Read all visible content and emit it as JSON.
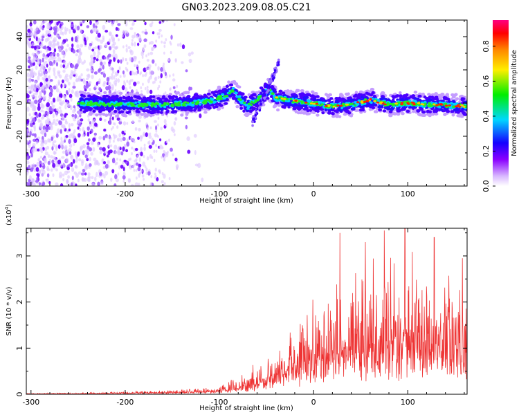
{
  "title": "GN03.2023.209.08.05.C21",
  "chart_data": [
    {
      "type": "heatmap",
      "xlabel": "Height of straight line (km)",
      "ylabel": "Frequency (Hz)",
      "xlim": [
        -305,
        163
      ],
      "ylim": [
        -50,
        50
      ],
      "x_ticks": [
        -300,
        -200,
        -100,
        0,
        100
      ],
      "y_ticks": [
        -40,
        -20,
        0,
        20,
        40
      ],
      "colorbar": {
        "label": "Normalized spectral amplitude",
        "range": [
          0,
          0.95
        ],
        "ticks": [
          0.0,
          0.2,
          0.4,
          0.6,
          0.8
        ]
      },
      "ridge": [
        {
          "x": -250,
          "y": 0
        },
        {
          "x": -200,
          "y": -1
        },
        {
          "x": -150,
          "y": -1
        },
        {
          "x": -110,
          "y": 1
        },
        {
          "x": -95,
          "y": 4
        },
        {
          "x": -85,
          "y": 8
        },
        {
          "x": -78,
          "y": 2
        },
        {
          "x": -70,
          "y": -2
        },
        {
          "x": -60,
          "y": 2
        },
        {
          "x": -48,
          "y": 8
        },
        {
          "x": -40,
          "y": 3
        },
        {
          "x": -30,
          "y": 2
        },
        {
          "x": -15,
          "y": 1
        },
        {
          "x": 0,
          "y": 0
        },
        {
          "x": 20,
          "y": -2
        },
        {
          "x": 40,
          "y": -1
        },
        {
          "x": 60,
          "y": 2
        },
        {
          "x": 80,
          "y": -1
        },
        {
          "x": 100,
          "y": 0
        },
        {
          "x": 130,
          "y": -1
        },
        {
          "x": 163,
          "y": -2
        }
      ]
    },
    {
      "type": "line",
      "xlabel": "Height of straight line (km)",
      "ylabel": "SNR (10 * v/v)",
      "y_multiplier": "(x10",
      "y_multiplier_exp": "4",
      "y_multiplier_close": ")",
      "xlim": [
        -305,
        163
      ],
      "ylim": [
        0,
        3.6
      ],
      "x_ticks": [
        -300,
        -200,
        -100,
        0,
        100
      ],
      "y_ticks": [
        0,
        1,
        2,
        3
      ],
      "color": "#ee3333",
      "series": [
        {
          "x": [
            -305,
            -250,
            -200,
            -150,
            -120,
            -100,
            -80,
            -60,
            -50,
            -40,
            -30,
            -20,
            0,
            20,
            40,
            60,
            80,
            100,
            120,
            140,
            163
          ],
          "values": [
            0.01,
            0.02,
            0.03,
            0.05,
            0.08,
            0.1,
            0.2,
            0.35,
            0.5,
            0.6,
            0.7,
            0.9,
            1.1,
            1.3,
            1.4,
            1.5,
            1.6,
            1.6,
            1.5,
            1.4,
            1.4
          ],
          "peaks": [
            {
              "x": 28,
              "y": 3.5
            },
            {
              "x": 55,
              "y": 3.3
            },
            {
              "x": 75,
              "y": 3.55
            },
            {
              "x": 97,
              "y": 3.6
            },
            {
              "x": 128,
              "y": 3.4
            },
            {
              "x": 158,
              "y": 2.95
            }
          ]
        }
      ]
    }
  ]
}
